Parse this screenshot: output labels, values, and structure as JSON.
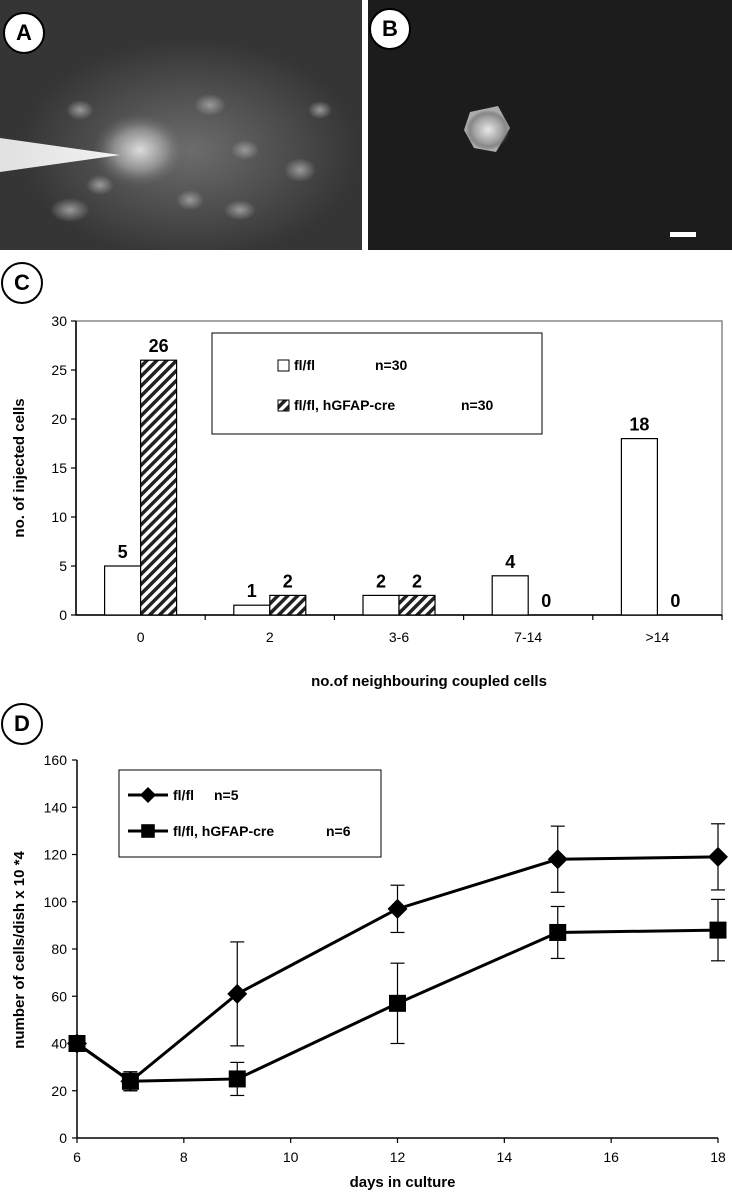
{
  "panels": {
    "a": {
      "label": "A"
    },
    "b": {
      "label": "B"
    },
    "c": {
      "label": "C"
    },
    "d": {
      "label": "D"
    }
  },
  "colors": {
    "micrograph_bg": "#1e1e1e",
    "cell_glow": "#e6e6e6",
    "bar_fill": "#ffffff",
    "hatch": "#222222",
    "series_line": "#000000"
  },
  "chart_data": [
    {
      "type": "bar",
      "title": "",
      "xlabel": "no.of neighbouring coupled cells",
      "ylabel": "no. of injected cells",
      "categories": [
        "0",
        "2",
        "3-6",
        "7-14",
        ">14"
      ],
      "ylim": [
        0,
        30
      ],
      "yticks": [
        "0",
        "5",
        "10",
        "15",
        "20",
        "25",
        "30"
      ],
      "series": [
        {
          "name": "fl/fl",
          "n": "n=30",
          "values": [
            5,
            1,
            2,
            4,
            18
          ],
          "labels": [
            "5",
            "1",
            "2",
            "4",
            "18"
          ],
          "pattern": "open"
        },
        {
          "name": "fl/fl, hGFAP-cre",
          "n": "n=30",
          "values": [
            26,
            2,
            2,
            0,
            0
          ],
          "labels": [
            "26",
            "2",
            "2",
            "0",
            "0"
          ],
          "pattern": "hatched"
        }
      ],
      "legend": "top-center",
      "grid": false
    },
    {
      "type": "line",
      "title": "",
      "xlabel": "days in culture",
      "ylabel": "number of cells/dish x 10 *4",
      "xlim": [
        6,
        18
      ],
      "ylim": [
        0,
        160
      ],
      "xticks": [
        "6",
        "8",
        "10",
        "12",
        "14",
        "16",
        "18"
      ],
      "yticks": [
        "0",
        "20",
        "40",
        "60",
        "80",
        "100",
        "120",
        "140",
        "160"
      ],
      "series": [
        {
          "name": "fl/fl",
          "n": "n=5",
          "marker": "diamond",
          "x": [
            6,
            7,
            9,
            12,
            15,
            18
          ],
          "y": [
            40,
            24,
            61,
            97,
            118,
            119
          ],
          "err": [
            3,
            4,
            22,
            10,
            14,
            14
          ]
        },
        {
          "name": "fl/fl, hGFAP-cre",
          "n": "n=6",
          "marker": "square",
          "x": [
            6,
            7,
            9,
            12,
            15,
            18
          ],
          "y": [
            40,
            24,
            25,
            57,
            87,
            88
          ],
          "err": [
            3,
            4,
            7,
            17,
            11,
            13
          ]
        }
      ],
      "legend": "top-left",
      "grid": false
    }
  ]
}
